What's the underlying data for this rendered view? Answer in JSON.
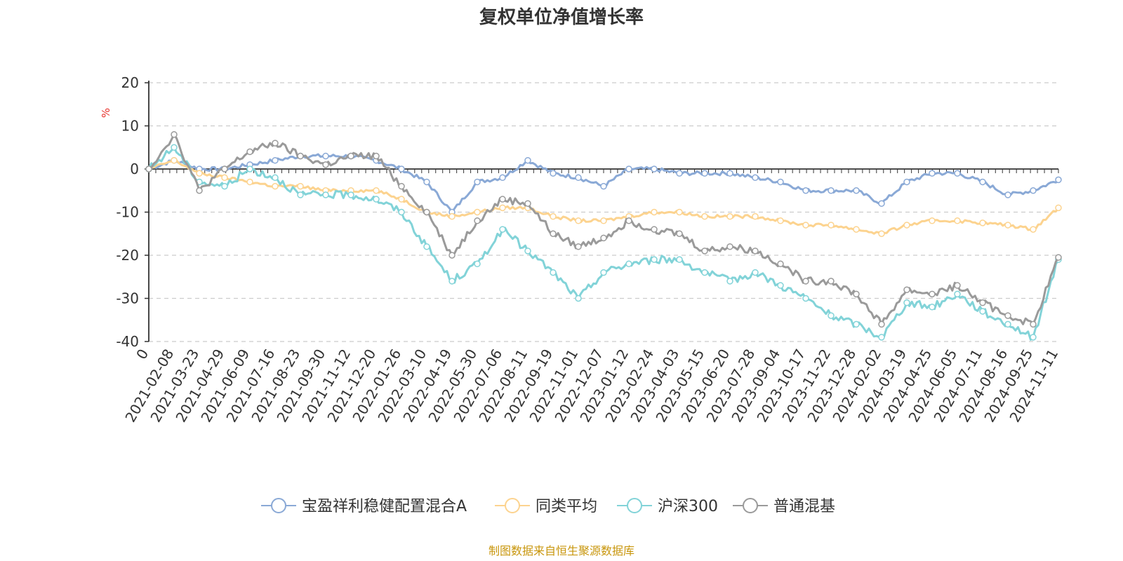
{
  "chart_data": {
    "type": "line",
    "title": "复权单位净值增长率",
    "unit": "%",
    "ylim": [
      -40,
      20
    ],
    "yticks": [
      20,
      10,
      0,
      -10,
      -20,
      -30,
      -40
    ],
    "categories": [
      "0",
      "2021-02-08",
      "2021-03-23",
      "2021-04-29",
      "2021-06-09",
      "2021-07-16",
      "2021-08-23",
      "2021-09-30",
      "2021-11-12",
      "2021-12-20",
      "2022-01-26",
      "2022-03-10",
      "2022-04-19",
      "2022-05-30",
      "2022-07-06",
      "2022-08-11",
      "2022-09-19",
      "2022-11-01",
      "2022-12-07",
      "2023-01-12",
      "2023-02-24",
      "2023-04-03",
      "2023-05-15",
      "2023-06-20",
      "2023-07-28",
      "2023-09-04",
      "2023-10-17",
      "2023-11-22",
      "2023-12-28",
      "2024-02-02",
      "2024-03-19",
      "2024-04-25",
      "2024-06-05",
      "2024-07-11",
      "2024-08-16",
      "2024-09-25",
      "2024-11-11"
    ],
    "series": [
      {
        "name": "宝盈祥利稳健配置混合A",
        "color": "#8aa9d6",
        "values": [
          0,
          2,
          0,
          0,
          1,
          2,
          3,
          3,
          3,
          2,
          0,
          -3,
          -10,
          -3,
          -2,
          2,
          -1,
          -2,
          -4,
          0,
          0,
          -1,
          -1,
          -1,
          -2,
          -3,
          -5,
          -5,
          -5,
          -8,
          -3,
          -1,
          -1,
          -3,
          -6,
          -5,
          -2.5
        ]
      },
      {
        "name": "同类平均",
        "color": "#fcd38f",
        "values": [
          0,
          2,
          -1,
          -2,
          -3,
          -4,
          -4,
          -5,
          -5,
          -5,
          -7,
          -10,
          -11,
          -10,
          -9,
          -9,
          -11,
          -12,
          -12,
          -11,
          -10,
          -10,
          -11,
          -11,
          -11,
          -12,
          -13,
          -13,
          -14,
          -15,
          -13,
          -12,
          -12,
          -12.5,
          -13,
          -14,
          -9
        ]
      },
      {
        "name": "沪深300",
        "color": "#82d3d8",
        "values": [
          0,
          5,
          -3,
          -4,
          0,
          -2,
          -6,
          -6,
          -6,
          -7,
          -10,
          -18,
          -26,
          -22,
          -14,
          -19,
          -24,
          -30,
          -24,
          -22,
          -21,
          -21,
          -24,
          -26,
          -24,
          -27,
          -30,
          -34,
          -36,
          -39,
          -31,
          -32,
          -29,
          -33,
          -36,
          -39,
          -21
        ]
      },
      {
        "name": "普通混基",
        "color": "#9a9a9a",
        "values": [
          0,
          8,
          -5,
          0,
          4,
          6,
          3,
          1,
          3,
          3,
          -4,
          -10,
          -20,
          -12,
          -7,
          -8,
          -15,
          -18,
          -16,
          -12,
          -14,
          -15,
          -19,
          -18,
          -19,
          -22,
          -26,
          -26,
          -29,
          -36,
          -28,
          -29,
          -27,
          -31,
          -34,
          -36,
          -20.5
        ]
      }
    ],
    "legend_position": "bottom",
    "source_note": "制图数据来自恒生聚源数据库"
  }
}
